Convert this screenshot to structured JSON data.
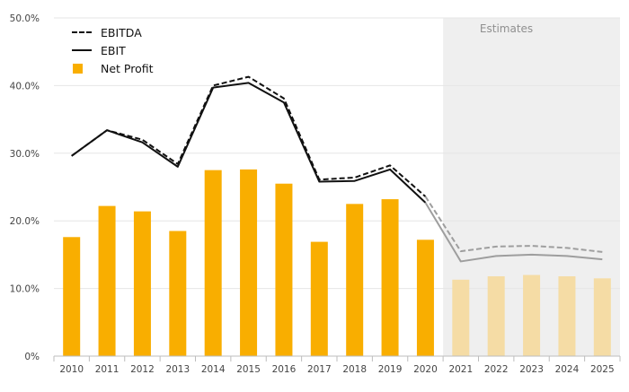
{
  "chart_data": {
    "type": "bar+line",
    "categories": [
      "2010",
      "2011",
      "2012",
      "2013",
      "2014",
      "2015",
      "2016",
      "2017",
      "2018",
      "2019",
      "2020",
      "2021",
      "2022",
      "2023",
      "2024",
      "2025"
    ],
    "series": [
      {
        "name": "EBITDA",
        "type": "line",
        "style": "dashed",
        "values": [
          29.6,
          33.4,
          32.0,
          28.4,
          40.0,
          41.3,
          38.1,
          26.1,
          26.4,
          28.2,
          23.6,
          15.5,
          16.2,
          16.3,
          16.0,
          15.4
        ]
      },
      {
        "name": "EBIT",
        "type": "line",
        "style": "solid",
        "values": [
          29.6,
          33.4,
          31.6,
          28.0,
          39.7,
          40.4,
          37.5,
          25.8,
          25.9,
          27.6,
          22.7,
          14.0,
          14.8,
          15.0,
          14.8,
          14.3
        ]
      },
      {
        "name": "Net Profit",
        "type": "bar",
        "values": [
          17.6,
          22.2,
          21.4,
          18.5,
          27.5,
          27.6,
          25.5,
          16.9,
          22.5,
          23.2,
          17.2,
          11.3,
          11.8,
          12.0,
          11.8,
          11.5
        ]
      }
    ],
    "estimates_from": "2021",
    "estimates_label": "Estimates",
    "ylim": [
      0,
      50
    ],
    "yticks": [
      "0%",
      "10.0%",
      "20.0%",
      "30.0%",
      "40.0%",
      "50.0%"
    ],
    "grid": true,
    "legend_position": "top-left",
    "colors": {
      "bar": "#f9ae00",
      "bar_estimate": "#f5dca5",
      "line": "#111111",
      "line_estimate": "#9e9e9e",
      "estimates_bg": "#efefef",
      "estimates_text": "#8f8f8f",
      "grid": "#e6e6e6",
      "axis_text": "#444444"
    }
  }
}
